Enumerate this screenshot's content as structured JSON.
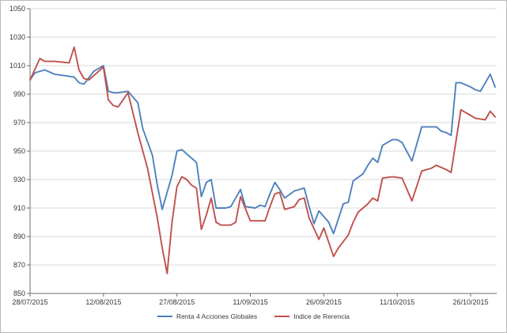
{
  "chart_data": {
    "type": "line",
    "title": "",
    "xlabel": "",
    "ylabel": "",
    "grid": "horizontal",
    "legend_position": "bottom-center",
    "colors": {
      "background": "#ffffff",
      "gridline": "#d9d9d9",
      "axis": "#6e6e6e",
      "tick_text": "#363636",
      "series_blue": "#4f81bd",
      "series_red": "#c0504d"
    },
    "x_axis": {
      "tick_labels": [
        "28/07/2015",
        "12/08/2015",
        "27/08/2015",
        "11/09/2015",
        "26/09/2015",
        "11/10/2015",
        "26/10/2015"
      ],
      "tick_day_offsets": [
        0,
        15,
        30,
        45,
        60,
        75,
        90
      ],
      "domain_days": [
        0,
        95
      ]
    },
    "y_axis": {
      "min": 850,
      "max": 1050,
      "tick_step": 20,
      "tick_labels": [
        "850",
        "870",
        "890",
        "910",
        "930",
        "950",
        "970",
        "990",
        "1010",
        "1030",
        "1050"
      ]
    },
    "series": [
      {
        "name": "Renta 4 Acciones Globales",
        "color": "#4f81bd",
        "points": [
          [
            0,
            1000
          ],
          [
            1,
            1005
          ],
          [
            3,
            1007
          ],
          [
            5,
            1004
          ],
          [
            7,
            1003
          ],
          [
            9,
            1002
          ],
          [
            10,
            998
          ],
          [
            11,
            997
          ],
          [
            13,
            1006
          ],
          [
            15,
            1010
          ],
          [
            16,
            992
          ],
          [
            17,
            991
          ],
          [
            18,
            991
          ],
          [
            20,
            992
          ],
          [
            22,
            984
          ],
          [
            23,
            966
          ],
          [
            25,
            947
          ],
          [
            26,
            926
          ],
          [
            27,
            909
          ],
          [
            29,
            933
          ],
          [
            30,
            950
          ],
          [
            31,
            951
          ],
          [
            33,
            945
          ],
          [
            34,
            942
          ],
          [
            35,
            918
          ],
          [
            36,
            928
          ],
          [
            37,
            930
          ],
          [
            38,
            910
          ],
          [
            40,
            910
          ],
          [
            41,
            911
          ],
          [
            43,
            923
          ],
          [
            44,
            911
          ],
          [
            46,
            910
          ],
          [
            47,
            912
          ],
          [
            48,
            911
          ],
          [
            49,
            920
          ],
          [
            50,
            928
          ],
          [
            51,
            923
          ],
          [
            52,
            917
          ],
          [
            54,
            922
          ],
          [
            56,
            924
          ],
          [
            57,
            911
          ],
          [
            58,
            899
          ],
          [
            59,
            908
          ],
          [
            61,
            900
          ],
          [
            62,
            892
          ],
          [
            64,
            913
          ],
          [
            65,
            914
          ],
          [
            66,
            929
          ],
          [
            68,
            934
          ],
          [
            69,
            940
          ],
          [
            70,
            945
          ],
          [
            71,
            942
          ],
          [
            72,
            954
          ],
          [
            74,
            958
          ],
          [
            75,
            958
          ],
          [
            76,
            956
          ],
          [
            78,
            943
          ],
          [
            80,
            967
          ],
          [
            83,
            967
          ],
          [
            84,
            964
          ],
          [
            85,
            963
          ],
          [
            86,
            961
          ],
          [
            87,
            998
          ],
          [
            88,
            998
          ],
          [
            90,
            995
          ],
          [
            91,
            993
          ],
          [
            92,
            992
          ],
          [
            94,
            1004
          ],
          [
            95,
            995
          ]
        ]
      },
      {
        "name": "Indice de Rerencia",
        "color": "#c0504d",
        "points": [
          [
            0,
            1000
          ],
          [
            2,
            1015
          ],
          [
            3,
            1013
          ],
          [
            5,
            1013
          ],
          [
            8,
            1012
          ],
          [
            9,
            1023
          ],
          [
            10,
            1007
          ],
          [
            11,
            1001
          ],
          [
            12,
            1000
          ],
          [
            14,
            1006
          ],
          [
            15,
            1009
          ],
          [
            16,
            986
          ],
          [
            17,
            982
          ],
          [
            18,
            981
          ],
          [
            19,
            986
          ],
          [
            20,
            991
          ],
          [
            22,
            963
          ],
          [
            24,
            938
          ],
          [
            26,
            903
          ],
          [
            27,
            882
          ],
          [
            28,
            864
          ],
          [
            29,
            900
          ],
          [
            30,
            925
          ],
          [
            31,
            932
          ],
          [
            32,
            930
          ],
          [
            33,
            926
          ],
          [
            34,
            924
          ],
          [
            35,
            895
          ],
          [
            36,
            905
          ],
          [
            37,
            917
          ],
          [
            38,
            900
          ],
          [
            39,
            898
          ],
          [
            41,
            898
          ],
          [
            42,
            900
          ],
          [
            43,
            918
          ],
          [
            45,
            901
          ],
          [
            46,
            901
          ],
          [
            48,
            901
          ],
          [
            49,
            911
          ],
          [
            50,
            920
          ],
          [
            51,
            921
          ],
          [
            52,
            909
          ],
          [
            54,
            911
          ],
          [
            55,
            916
          ],
          [
            56,
            917
          ],
          [
            57,
            903
          ],
          [
            59,
            888
          ],
          [
            60,
            896
          ],
          [
            61,
            886
          ],
          [
            62,
            876
          ],
          [
            63,
            882
          ],
          [
            65,
            891
          ],
          [
            66,
            900
          ],
          [
            67,
            907
          ],
          [
            69,
            913
          ],
          [
            70,
            917
          ],
          [
            71,
            915
          ],
          [
            72,
            931
          ],
          [
            74,
            932
          ],
          [
            76,
            931
          ],
          [
            78,
            915
          ],
          [
            80,
            936
          ],
          [
            82,
            938
          ],
          [
            83,
            940
          ],
          [
            85,
            937
          ],
          [
            86,
            935
          ],
          [
            88,
            979
          ],
          [
            90,
            975
          ],
          [
            91,
            973
          ],
          [
            93,
            972
          ],
          [
            94,
            978
          ],
          [
            95,
            974
          ]
        ]
      }
    ]
  }
}
